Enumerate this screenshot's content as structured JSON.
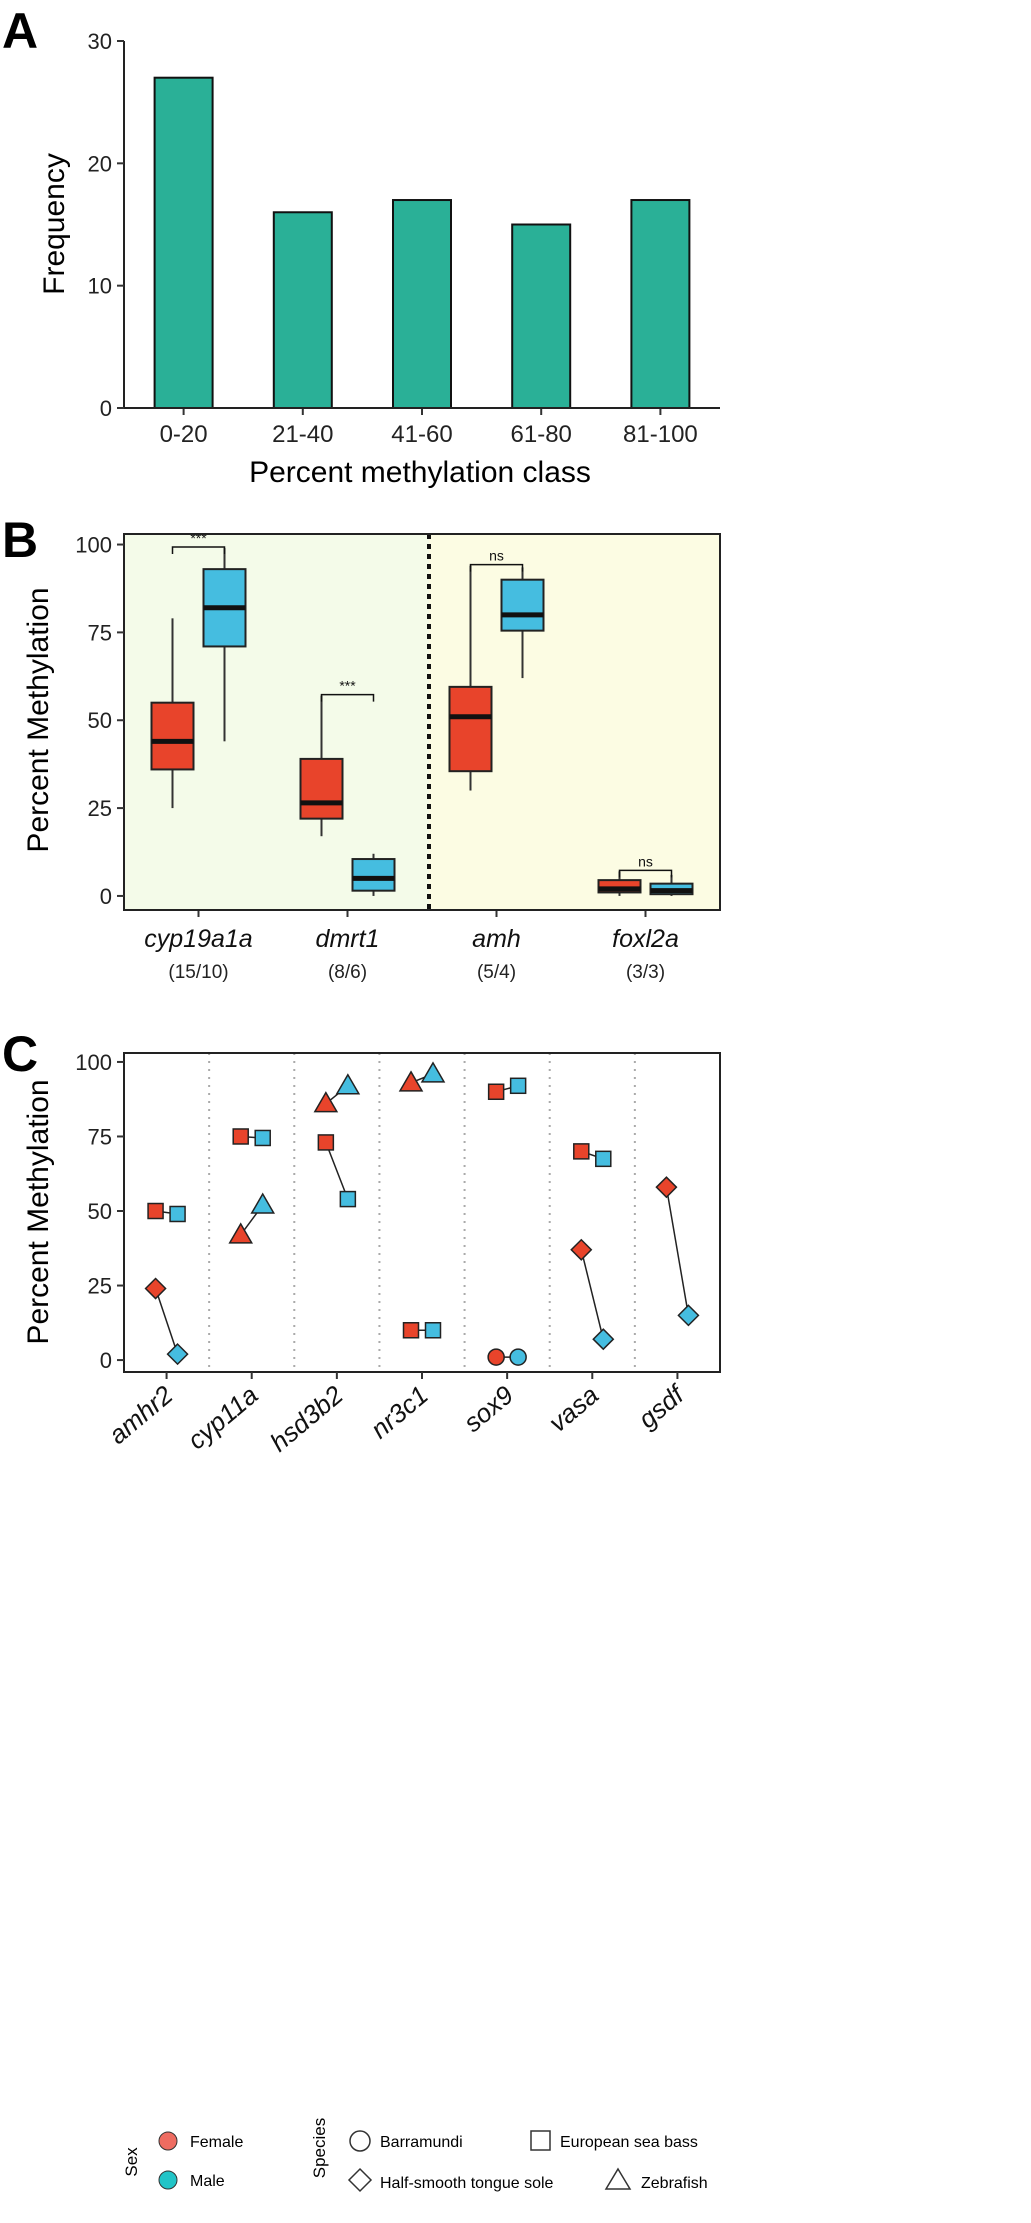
{
  "panels": {
    "a": "A",
    "b": "B",
    "c": "C"
  },
  "colors": {
    "teal": "#2ab097",
    "female": "#e8442b",
    "male": "#45bde0",
    "bgA": "#f4fbe9",
    "bgB": "#fcfce3"
  },
  "chart_data": [
    {
      "id": "A",
      "type": "bar",
      "xlabel": "Percent methylation class",
      "ylabel": "Frequency",
      "categories": [
        "0-20",
        "21-40",
        "41-60",
        "61-80",
        "81-100"
      ],
      "values": [
        27,
        16,
        17,
        15,
        17
      ],
      "ylim": [
        0,
        30
      ],
      "yticks": [
        0,
        10,
        20,
        30
      ],
      "ytick_labels": [
        "0",
        "10",
        "20",
        "30"
      ]
    },
    {
      "id": "B",
      "type": "box",
      "ylabel": "Percent Methylation",
      "ylim": [
        -4,
        103
      ],
      "yticks": [
        0,
        25,
        50,
        75,
        100
      ],
      "ytick_labels": [
        "0",
        "25",
        "50",
        "75",
        "100"
      ],
      "genes": [
        {
          "name": "cyp19a1a",
          "counts": "(15/10)",
          "female": {
            "min": 25,
            "q1": 36,
            "median": 44,
            "q3": 55,
            "max": 79
          },
          "male": {
            "min": 44,
            "q1": 71,
            "median": 82,
            "q3": 93,
            "max": 99
          },
          "sig": "***"
        },
        {
          "name": "dmrt1",
          "counts": "(8/6)",
          "female": {
            "min": 17,
            "q1": 22,
            "median": 26.5,
            "q3": 39,
            "max": 57
          },
          "male": {
            "min": 0,
            "q1": 1.5,
            "median": 5,
            "q3": 10.5,
            "max": 12
          },
          "sig": "***"
        },
        {
          "name": "amh",
          "counts": "(5/4)",
          "female": {
            "min": 30,
            "q1": 35.5,
            "median": 51,
            "q3": 59.5,
            "max": 94
          },
          "male": {
            "min": 62,
            "q1": 75.5,
            "median": 80,
            "q3": 90,
            "max": 93.5
          },
          "sig": "ns"
        },
        {
          "name": "foxl2a",
          "counts": "(3/3)",
          "female": {
            "min": 0,
            "q1": 1,
            "median": 2,
            "q3": 4.5,
            "max": 7
          },
          "male": {
            "min": 0,
            "q1": 0.5,
            "median": 1.5,
            "q3": 3.5,
            "max": 6
          },
          "sig": "ns"
        }
      ]
    },
    {
      "id": "C",
      "type": "scatter",
      "ylabel": "Percent Methylation",
      "ylim": [
        -4,
        103
      ],
      "yticks": [
        0,
        25,
        50,
        75,
        100
      ],
      "ytick_labels": [
        "0",
        "25",
        "50",
        "75",
        "100"
      ],
      "genes": [
        "amhr2",
        "cyp11a",
        "hsd3b2",
        "nr3c1",
        "sox9",
        "vasa",
        "gsdf"
      ],
      "points": [
        {
          "gene": "amhr2",
          "species": "European sea bass",
          "female": 50,
          "male": 49
        },
        {
          "gene": "amhr2",
          "species": "Half-smooth tongue sole",
          "female": 24,
          "male": 2
        },
        {
          "gene": "cyp11a",
          "species": "European sea bass",
          "female": 75,
          "male": 74.5
        },
        {
          "gene": "cyp11a",
          "species": "Zebrafish",
          "female": 42,
          "male": 52
        },
        {
          "gene": "hsd3b2",
          "species": "European sea bass",
          "female": 73,
          "male": 54
        },
        {
          "gene": "hsd3b2",
          "species": "Zebrafish",
          "female": 86,
          "male": 92
        },
        {
          "gene": "nr3c1",
          "species": "Zebrafish",
          "female": 93,
          "male": 96
        },
        {
          "gene": "nr3c1",
          "species": "European sea bass",
          "female": 10,
          "male": 10
        },
        {
          "gene": "sox9",
          "species": "European sea bass",
          "female": 90,
          "male": 92
        },
        {
          "gene": "sox9",
          "species": "Barramundi",
          "female": 1,
          "male": 1
        },
        {
          "gene": "vasa",
          "species": "European sea bass",
          "female": 70,
          "male": 67.5
        },
        {
          "gene": "vasa",
          "species": "Half-smooth tongue sole",
          "female": 37,
          "male": 7
        },
        {
          "gene": "gsdf",
          "species": "Half-smooth tongue sole",
          "female": 58,
          "male": 15
        }
      ],
      "legend": {
        "sex_title": "Sex",
        "sex": [
          {
            "label": "Female",
            "key": "female"
          },
          {
            "label": "Male",
            "key": "male"
          }
        ],
        "species_title": "Species",
        "species": [
          {
            "label": "Barramundi",
            "shape": "circle"
          },
          {
            "label": "European sea bass",
            "shape": "square"
          },
          {
            "label": "Half-smooth tongue sole",
            "shape": "diamond"
          },
          {
            "label": "Zebrafish",
            "shape": "triangle"
          }
        ]
      }
    }
  ]
}
